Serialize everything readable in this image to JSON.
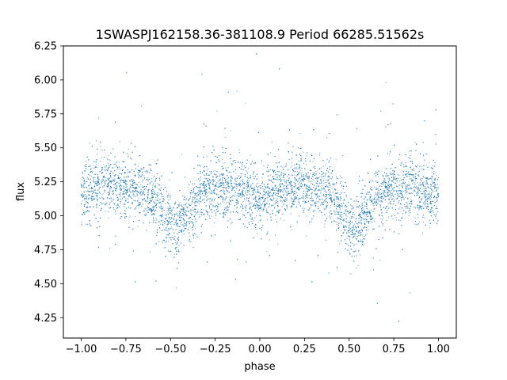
{
  "chart_data": {
    "type": "scatter",
    "title": "1SWASPJ162158.36-381108.9 Period 66285.51562s",
    "xlabel": "phase",
    "ylabel": "flux",
    "xlim": [
      -1.1,
      1.1
    ],
    "ylim": [
      4.1,
      6.25
    ],
    "xticks": [
      -1.0,
      -0.75,
      -0.5,
      -0.25,
      0.0,
      0.25,
      0.5,
      0.75,
      1.0
    ],
    "xtick_labels": [
      "−1.00",
      "−0.75",
      "−0.50",
      "−0.25",
      "0.00",
      "0.25",
      "0.50",
      "0.75",
      "1.00"
    ],
    "yticks": [
      4.25,
      4.5,
      4.75,
      5.0,
      5.25,
      5.5,
      5.75,
      6.0,
      6.25
    ],
    "ytick_labels": [
      "4.25",
      "4.50",
      "4.75",
      "5.00",
      "5.25",
      "5.50",
      "5.75",
      "6.00",
      "6.25"
    ],
    "grid": false,
    "legend": "none",
    "marker_color": "#1f77b4",
    "series": [
      {
        "points": [
          [
            -1.0,
            5.15
          ],
          [
            -0.95,
            5.18
          ],
          [
            -0.9,
            5.2
          ],
          [
            -0.85,
            5.22
          ],
          [
            -0.8,
            5.22
          ],
          [
            -0.75,
            5.21
          ],
          [
            -0.7,
            5.2
          ],
          [
            -0.65,
            5.18
          ],
          [
            -0.6,
            5.14
          ],
          [
            -0.55,
            5.05
          ],
          [
            -0.5,
            4.95
          ],
          [
            -0.47,
            4.9
          ],
          [
            -0.45,
            4.92
          ],
          [
            -0.4,
            5.03
          ],
          [
            -0.35,
            5.12
          ],
          [
            -0.3,
            5.17
          ],
          [
            -0.25,
            5.2
          ],
          [
            -0.2,
            5.21
          ],
          [
            -0.15,
            5.2
          ],
          [
            -0.1,
            5.18
          ],
          [
            -0.05,
            5.15
          ],
          [
            0.0,
            5.13
          ],
          [
            0.05,
            5.15
          ],
          [
            0.1,
            5.18
          ],
          [
            0.15,
            5.2
          ],
          [
            0.2,
            5.22
          ],
          [
            0.25,
            5.22
          ],
          [
            0.3,
            5.21
          ],
          [
            0.35,
            5.2
          ],
          [
            0.4,
            5.15
          ],
          [
            0.45,
            5.05
          ],
          [
            0.5,
            4.95
          ],
          [
            0.53,
            4.9
          ],
          [
            0.55,
            4.92
          ],
          [
            0.6,
            5.03
          ],
          [
            0.65,
            5.12
          ],
          [
            0.7,
            5.17
          ],
          [
            0.75,
            5.2
          ],
          [
            0.8,
            5.21
          ],
          [
            0.85,
            5.2
          ],
          [
            0.9,
            5.18
          ],
          [
            0.95,
            5.16
          ],
          [
            1.0,
            5.14
          ]
        ]
      }
    ]
  }
}
